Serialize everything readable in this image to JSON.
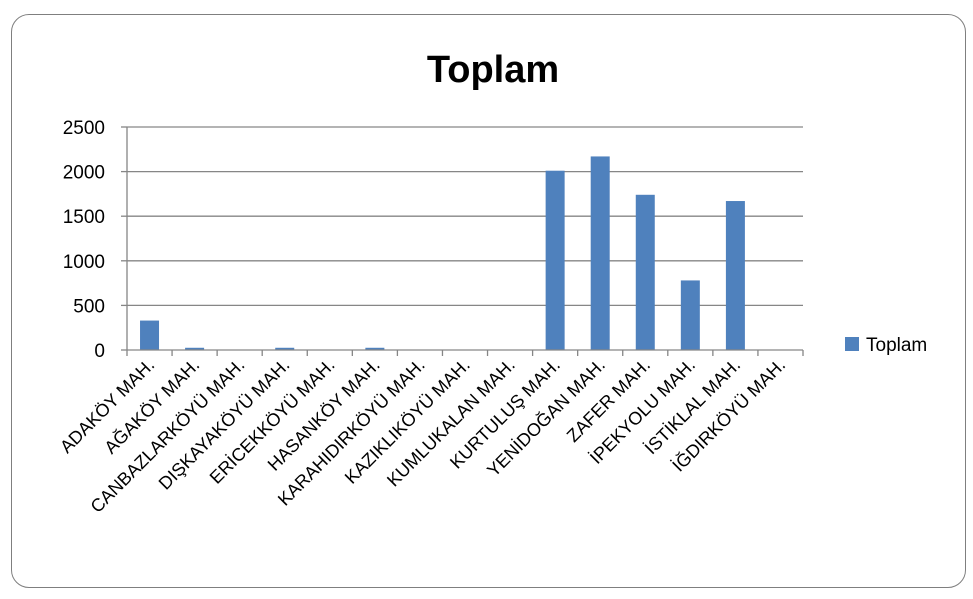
{
  "chart_data": {
    "type": "bar",
    "title": "Toplam",
    "categories": [
      "ADAKÖY MAH.",
      "AĞAKÖY MAH.",
      "CANBAZLARKÖYÜ MAH.",
      "DIŞKAYAKÖYÜ MAH.",
      "ERİCEKKÖYÜ MAH.",
      "HASANKÖY MAH.",
      "KARAHIDIRKÖYÜ MAH.",
      "KAZIKLIKÖYÜ MAH.",
      "KUMLUKALAN MAH.",
      "KURTULUŞ MAH.",
      "YENİDOĞAN MAH.",
      "ZAFER MAH.",
      "İPEKYOLU MAH.",
      "İSTİKLAL MAH.",
      "İĞDIRKÖYÜ MAH."
    ],
    "series": [
      {
        "name": "Toplam",
        "color": "#4f81bd",
        "values": [
          330,
          25,
          0,
          25,
          0,
          25,
          0,
          0,
          0,
          2010,
          2170,
          1740,
          780,
          1670,
          0
        ]
      }
    ],
    "ylim": [
      0,
      2500
    ],
    "yticks": [
      "0",
      "500",
      "1000",
      "1500",
      "2000",
      "2500"
    ],
    "grid": true,
    "legend": "right"
  }
}
